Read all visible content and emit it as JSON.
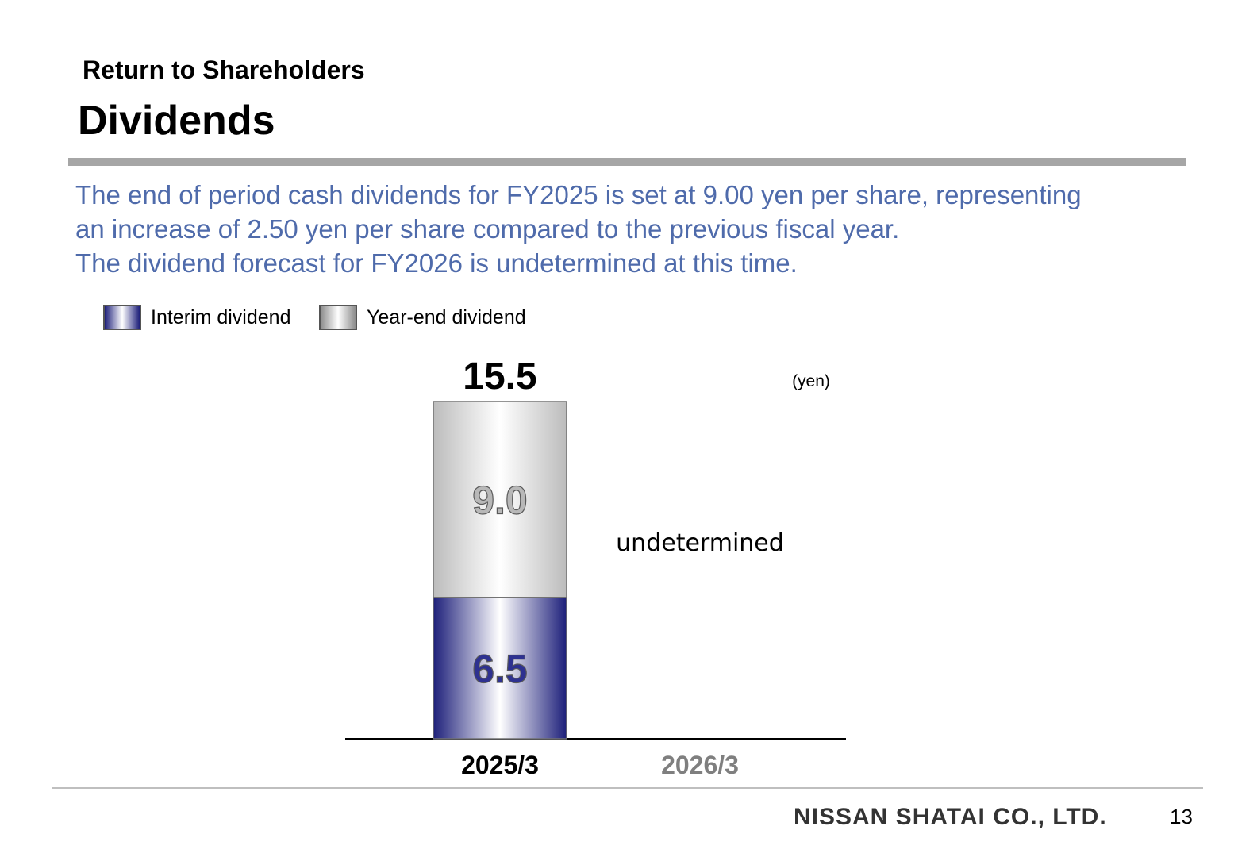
{
  "header": {
    "subtitle": "Return to Shareholders",
    "title": "Dividends"
  },
  "summary": {
    "line1": "The end of period cash dividends for FY2025 is set at 9.00 yen per share, representing",
    "line2": "an increase of 2.50 yen per share compared to the previous fiscal year.",
    "line3": "The dividend forecast for FY2026 is undetermined at this time."
  },
  "footer": {
    "company": "NISSAN SHATAI CO., LTD.",
    "page": "13"
  },
  "colors": {
    "summary_text": "#4f6bab",
    "interim": "#1d1f7a",
    "year_end": "#8c8c8c",
    "rule": "#a6a6a6"
  },
  "chart_data": {
    "type": "bar",
    "stacked": true,
    "unit_label": "(yen)",
    "categories": [
      "2025/3",
      "2026/3"
    ],
    "series": [
      {
        "name": "Interim dividend",
        "values": [
          6.5,
          null
        ]
      },
      {
        "name": "Year-end dividend",
        "values": [
          9.0,
          null
        ]
      }
    ],
    "value_labels": [
      "6.5",
      "9.0"
    ],
    "totals": [
      "15.5",
      ""
    ],
    "annotations": [
      "",
      "undetermined"
    ],
    "ylim": [
      0,
      15.5
    ],
    "grid": false,
    "legend_position": "top-left"
  }
}
